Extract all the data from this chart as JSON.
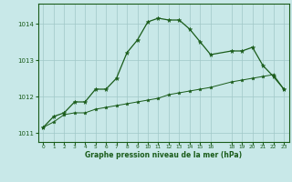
{
  "line1_x": [
    0,
    1,
    2,
    3,
    4,
    5,
    6,
    7,
    8,
    9,
    10,
    11,
    12,
    13,
    14,
    15,
    16,
    18,
    19,
    20,
    21,
    22,
    23
  ],
  "line1_y": [
    1011.15,
    1011.45,
    1011.55,
    1011.85,
    1011.85,
    1012.2,
    1012.2,
    1012.5,
    1013.2,
    1013.55,
    1014.05,
    1014.15,
    1014.1,
    1014.1,
    1013.85,
    1013.5,
    1013.15,
    1013.25,
    1013.25,
    1013.35,
    1012.85,
    1012.55,
    1012.2
  ],
  "line2_x": [
    0,
    1,
    2,
    3,
    4,
    5,
    6,
    7,
    8,
    9,
    10,
    11,
    12,
    13,
    14,
    15,
    16,
    18,
    19,
    20,
    21,
    22,
    23
  ],
  "line2_y": [
    1011.15,
    1011.3,
    1011.5,
    1011.55,
    1011.55,
    1011.65,
    1011.7,
    1011.75,
    1011.8,
    1011.85,
    1011.9,
    1011.95,
    1012.05,
    1012.1,
    1012.15,
    1012.2,
    1012.25,
    1012.4,
    1012.45,
    1012.5,
    1012.55,
    1012.6,
    1012.2
  ],
  "bg_color": "#c8e8e8",
  "line_color": "#1a5c1a",
  "grid_color": "#a0c8c8",
  "text_color": "#1a5c1a",
  "xlabel": "Graphe pression niveau de la mer (hPa)",
  "ylim": [
    1010.75,
    1014.55
  ],
  "xlim": [
    -0.5,
    23.5
  ],
  "yticks": [
    1011,
    1012,
    1013,
    1014
  ],
  "xticks": [
    0,
    1,
    2,
    3,
    4,
    5,
    6,
    7,
    8,
    9,
    10,
    11,
    12,
    13,
    14,
    15,
    16,
    18,
    19,
    20,
    21,
    22,
    23
  ]
}
